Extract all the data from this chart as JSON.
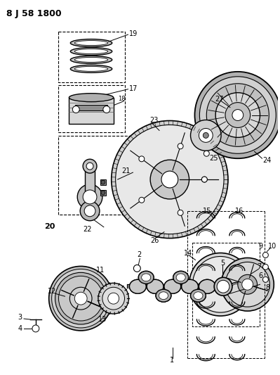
{
  "title": "8 J 58 1800",
  "bg_color": "#ffffff",
  "line_color": "#000000",
  "figsize": [
    3.99,
    5.33
  ],
  "dpi": 100
}
